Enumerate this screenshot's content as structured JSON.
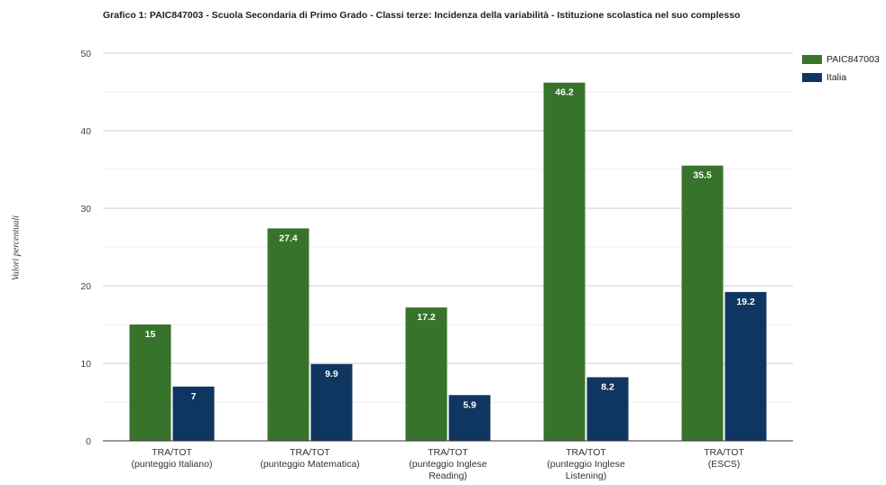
{
  "chart_data": {
    "type": "bar",
    "title": "Grafico 1: PAIC847003 - Scuola Secondaria di Primo Grado - Classi terze: Incidenza della variabilità - Istituzione scolastica nel suo complesso",
    "xlabel": "",
    "ylabel": "Valori percentuali",
    "ylim": [
      0,
      50
    ],
    "yticks": [
      0,
      10,
      20,
      30,
      40,
      50
    ],
    "grid": true,
    "legend_position": "right",
    "categories": [
      "TRA/TOT (punteggio Italiano)",
      "TRA/TOT (punteggio Matematica)",
      "TRA/TOT (punteggio Inglese Reading)",
      "TRA/TOT (punteggio Inglese Listening)",
      "TRA/TOT (ESCS)"
    ],
    "category_lines": [
      [
        "TRA/TOT",
        "(punteggio Italiano)"
      ],
      [
        "TRA/TOT",
        "(punteggio Matematica)"
      ],
      [
        "TRA/TOT",
        "(punteggio Inglese",
        "Reading)"
      ],
      [
        "TRA/TOT",
        "(punteggio Inglese",
        "Listening)"
      ],
      [
        "TRA/TOT",
        "(ESCS)"
      ]
    ],
    "series": [
      {
        "name": "PAIC847003",
        "color": "#38732c",
        "values": [
          15,
          27.4,
          17.2,
          46.2,
          35.5
        ]
      },
      {
        "name": "Italia",
        "color": "#0f3660",
        "values": [
          7,
          9.9,
          5.9,
          8.2,
          19.2
        ]
      }
    ]
  }
}
